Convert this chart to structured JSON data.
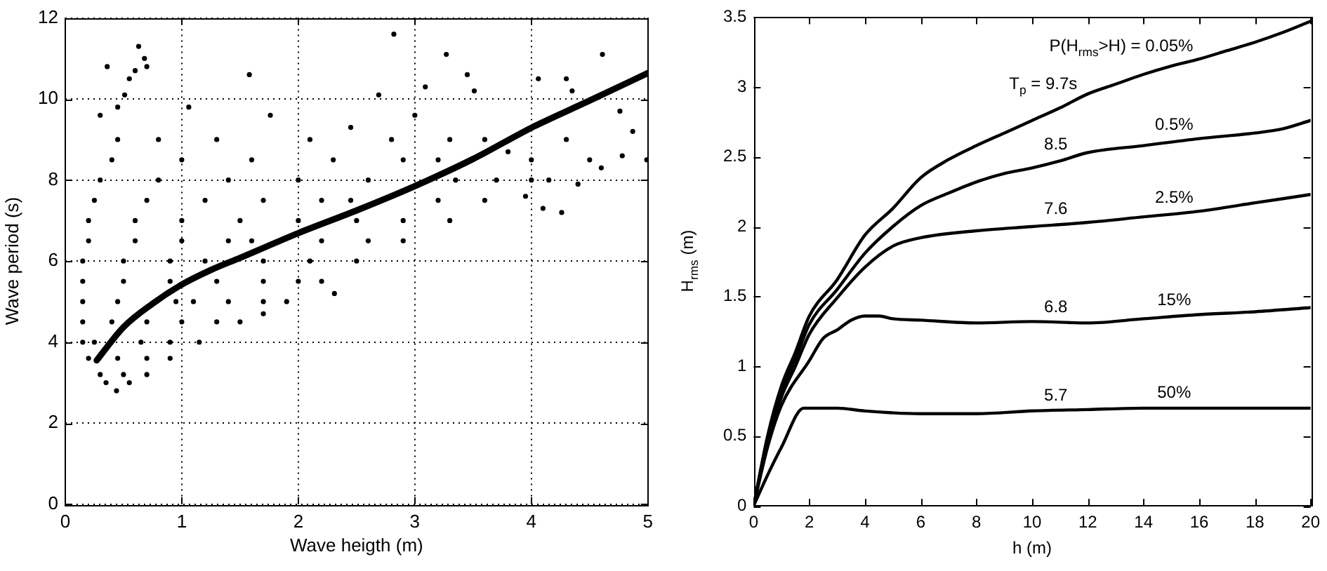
{
  "chart_data": [
    {
      "type": "scatter",
      "xlabel": "Wave heigth (m)",
      "ylabel": "Wave period (s)",
      "xlim": [
        0,
        5
      ],
      "xticks": [
        0,
        1,
        2,
        3,
        4,
        5
      ],
      "ylim": [
        0,
        12
      ],
      "yticks": [
        0,
        2,
        4,
        6,
        8,
        10,
        12
      ],
      "grid": true,
      "series": [
        {
          "color": "#000000",
          "marker": "circle",
          "x": [
            0.35,
            0.55,
            0.3,
            0.5,
            0.7,
            0.2,
            0.45,
            0.7,
            0.9,
            0.15,
            0.25,
            0.65,
            0.9,
            1.15,
            0.15,
            0.4,
            0.7,
            1.0,
            1.3,
            1.5,
            0.15,
            0.45,
            0.95,
            1.1,
            1.4,
            1.7,
            1.9,
            0.15,
            0.5,
            0.9,
            1.3,
            1.7,
            2.0,
            2.2,
            0.15,
            0.5,
            0.9,
            1.2,
            1.7,
            2.1,
            2.5,
            0.2,
            0.6,
            1.0,
            1.4,
            1.6,
            2.2,
            2.6,
            2.9,
            0.2,
            0.6,
            1.0,
            1.5,
            2.0,
            2.5,
            2.9,
            3.3,
            0.25,
            0.7,
            1.2,
            1.7,
            2.2,
            2.45,
            3.2,
            3.6,
            0.3,
            0.8,
            1.4,
            2.0,
            2.6,
            3.35,
            3.7,
            4.0,
            0.4,
            1.0,
            1.6,
            2.3,
            2.9,
            3.2,
            4.0,
            4.5,
            0.45,
            0.8,
            1.3,
            2.1,
            2.8,
            3.3,
            3.6,
            4.3,
            0.36,
            0.63,
            0.68,
            0.7,
            0.55,
            0.6,
            0.51,
            0.3,
            0.45,
            1.58,
            1.06,
            2.82,
            3.27,
            3.09,
            3.45,
            3.51,
            4.61,
            4.06,
            4.3,
            4.35,
            2.69,
            1.76,
            3.0,
            2.45,
            4.76,
            4.87,
            4.78,
            4.99,
            4.26,
            4.1,
            4.4,
            4.15,
            3.8,
            4.6,
            3.95,
            2.31,
            1.7,
            0.44
          ],
          "values": [
            3.0,
            3.0,
            3.2,
            3.2,
            3.2,
            3.6,
            3.6,
            3.6,
            3.6,
            4.0,
            4.0,
            4.0,
            4.0,
            4.0,
            4.5,
            4.5,
            4.5,
            4.5,
            4.5,
            4.5,
            5.0,
            5.0,
            5.0,
            5.0,
            5.0,
            5.0,
            5.0,
            5.5,
            5.5,
            5.5,
            5.5,
            5.5,
            5.5,
            5.5,
            6.0,
            6.0,
            6.0,
            6.0,
            6.0,
            6.0,
            6.0,
            6.5,
            6.5,
            6.5,
            6.5,
            6.5,
            6.5,
            6.5,
            6.5,
            7.0,
            7.0,
            7.0,
            7.0,
            7.0,
            7.0,
            7.0,
            7.0,
            7.5,
            7.5,
            7.5,
            7.5,
            7.5,
            7.5,
            7.5,
            7.5,
            8.0,
            8.0,
            8.0,
            8.0,
            8.0,
            8.0,
            8.0,
            8.0,
            8.5,
            8.5,
            8.5,
            8.5,
            8.5,
            8.5,
            8.5,
            8.5,
            9.0,
            9.0,
            9.0,
            9.0,
            9.0,
            9.0,
            9.0,
            9.0,
            10.8,
            11.3,
            11.0,
            10.8,
            10.5,
            10.7,
            10.1,
            9.6,
            9.8,
            10.6,
            9.8,
            11.6,
            11.1,
            10.3,
            10.6,
            10.2,
            11.1,
            10.5,
            10.5,
            10.2,
            10.1,
            9.6,
            9.6,
            9.3,
            9.7,
            9.2,
            8.6,
            8.5,
            7.2,
            7.3,
            7.9,
            8.0,
            8.7,
            8.3,
            7.6,
            5.2,
            4.7,
            2.8
          ]
        },
        {
          "type": "line",
          "color": "#000000",
          "x": [
            0.27,
            0.5,
            0.75,
            1,
            1.25,
            1.5,
            2,
            2.5,
            3,
            3.5,
            4,
            4.5,
            5
          ],
          "values": [
            3.55,
            4.37,
            4.95,
            5.42,
            5.78,
            6.08,
            6.69,
            7.25,
            7.85,
            8.52,
            9.29,
            9.96,
            10.64
          ]
        }
      ]
    },
    {
      "type": "line",
      "xlabel": "h (m)",
      "ylabel": "H$_{rms}$ (m)",
      "xlim": [
        0,
        20
      ],
      "xticks": [
        0,
        2,
        4,
        6,
        8,
        10,
        12,
        14,
        16,
        18,
        20
      ],
      "ylim": [
        0,
        3.5
      ],
      "yticks": [
        0,
        0.5,
        1,
        1.5,
        2,
        2.5,
        3,
        3.5
      ],
      "series": [
        {
          "color": "#000000",
          "x": [
            0,
            0.5,
            1,
            1.5,
            2,
            3,
            4,
            5,
            6,
            7,
            8,
            9,
            10,
            11,
            12,
            13,
            14,
            15,
            16,
            17,
            18,
            19,
            20
          ],
          "values": [
            0,
            0.5,
            0.86,
            1.1,
            1.36,
            1.62,
            1.94,
            2.13,
            2.35,
            2.48,
            2.58,
            2.67,
            2.76,
            2.85,
            2.95,
            3.02,
            3.09,
            3.15,
            3.2,
            3.26,
            3.32,
            3.39,
            3.47
          ]
        },
        {
          "color": "#000000",
          "x": [
            0,
            0.5,
            1,
            1.5,
            2,
            3,
            4,
            5,
            6,
            7,
            8,
            9,
            10,
            11,
            12,
            14,
            16,
            18,
            19,
            20
          ],
          "values": [
            0,
            0.48,
            0.82,
            1.05,
            1.3,
            1.55,
            1.81,
            2.0,
            2.15,
            2.24,
            2.32,
            2.38,
            2.42,
            2.47,
            2.53,
            2.58,
            2.63,
            2.67,
            2.7,
            2.76
          ]
        },
        {
          "color": "#000000",
          "x": [
            0,
            0.5,
            1,
            1.5,
            2,
            3,
            4,
            5,
            6,
            8,
            10,
            12,
            14,
            16,
            18,
            20
          ],
          "values": [
            0,
            0.46,
            0.78,
            1.0,
            1.23,
            1.49,
            1.71,
            1.86,
            1.92,
            1.97,
            2.0,
            2.03,
            2.07,
            2.11,
            2.17,
            2.23
          ]
        },
        {
          "color": "#000000",
          "x": [
            0,
            0.5,
            1,
            2,
            2.5,
            3,
            3.5,
            4,
            4.5,
            5,
            6,
            8,
            10,
            12,
            14,
            16,
            18,
            20
          ],
          "values": [
            0,
            0.42,
            0.72,
            1.04,
            1.2,
            1.26,
            1.33,
            1.36,
            1.36,
            1.34,
            1.33,
            1.31,
            1.32,
            1.31,
            1.34,
            1.37,
            1.39,
            1.42
          ]
        },
        {
          "color": "#000000",
          "x": [
            0,
            0.5,
            1,
            1.8,
            3,
            4,
            6,
            8,
            10,
            12,
            14,
            20
          ],
          "values": [
            0,
            0.22,
            0.42,
            0.7,
            0.7,
            0.68,
            0.66,
            0.66,
            0.68,
            0.69,
            0.7,
            0.7
          ]
        }
      ],
      "annotations": [
        {
          "text": "P(H$_{rms}$>H) = 0.05%",
          "x": 13.2,
          "y": 3.03
        },
        {
          "text": "T$_{p}$ = 9.7s",
          "x": 10.4,
          "y": 2.8
        },
        {
          "text": "0.5%",
          "x": 15.1,
          "y": 2.6
        },
        {
          "text": "8.5",
          "x": 10.85,
          "y": 2.46
        },
        {
          "text": "7.6",
          "x": 10.85,
          "y": 2.01
        },
        {
          "text": "2.5%",
          "x": 15.1,
          "y": 2.09
        },
        {
          "text": "6.8",
          "x": 10.85,
          "y": 1.32
        },
        {
          "text": "15%",
          "x": 15.1,
          "y": 1.36
        },
        {
          "text": "5.7",
          "x": 10.85,
          "y": 0.68
        },
        {
          "text": "50%",
          "x": 15.1,
          "y": 0.7
        }
      ]
    }
  ]
}
